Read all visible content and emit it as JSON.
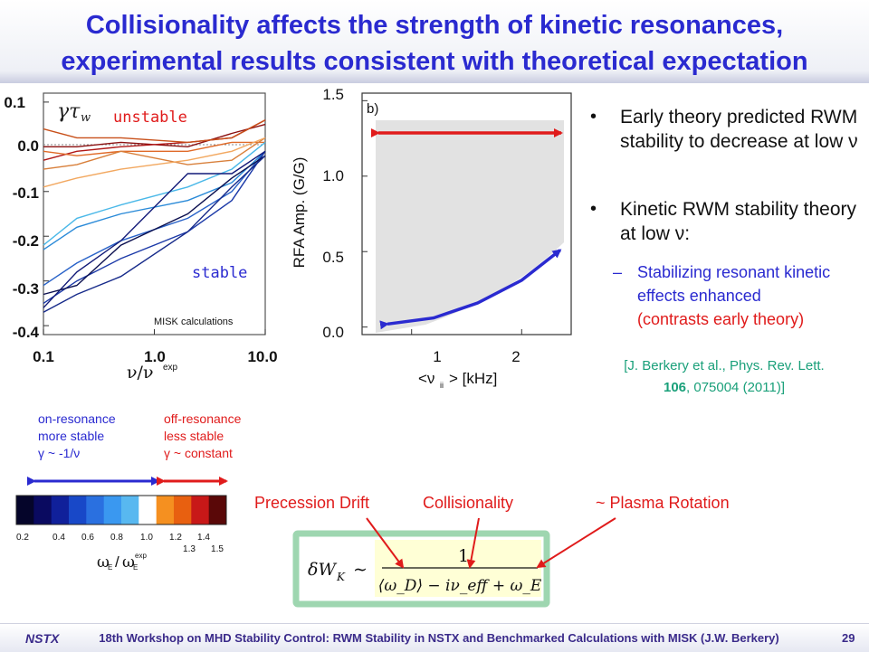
{
  "title": {
    "line1": "Collisionality affects the strength of kinetic resonances,",
    "line2": "experimental results consistent with theoretical expectation"
  },
  "left_chart": {
    "y_symbol": "γτ",
    "y_symbol_sub": "w",
    "ytick_labels": [
      "0.1",
      "0.0",
      "-0.1",
      "-0.2",
      "-0.3",
      "-0.4"
    ],
    "xtick_labels": [
      "0.1",
      "1.0",
      "10.0"
    ],
    "xlabel_main": "ν/ν",
    "xlabel_sup": "exp",
    "label_unstable": "unstable",
    "label_stable": "stable",
    "note": "MISK calculations"
  },
  "right_chart": {
    "panel_label": "b)",
    "ylabel": "RFA Amp. (G/G)",
    "ytick_labels": [
      "1.5",
      "1.0",
      "0.5",
      "0.0"
    ],
    "xtick_labels": [
      "1",
      "2"
    ],
    "xlabel_main": "<ν",
    "xlabel_sub": "ii",
    "xlabel_tail": "> [kHz]"
  },
  "chart_data": [
    {
      "type": "line",
      "title": "",
      "xlabel": "ν/ν^exp",
      "ylabel": "γτw",
      "xscale": "log",
      "xlim": [
        0.1,
        10.0
      ],
      "ylim": [
        -0.42,
        0.12
      ],
      "x": [
        0.1,
        0.2,
        0.5,
        2.0,
        5.0,
        10.0
      ],
      "series": [
        {
          "color": "#8b1010",
          "values": [
            0.0,
            0.0,
            0.01,
            0.0,
            0.03,
            0.05
          ]
        },
        {
          "color": "#b01818",
          "values": [
            -0.03,
            -0.01,
            0.0,
            0.01,
            0.02,
            0.06
          ]
        },
        {
          "color": "#c8501a",
          "values": [
            0.04,
            0.02,
            0.02,
            0.01,
            0.02,
            0.06
          ]
        },
        {
          "color": "#e06a28",
          "values": [
            -0.01,
            -0.02,
            -0.01,
            -0.01,
            0.01,
            0.01
          ]
        },
        {
          "color": "#d87f3a",
          "values": [
            -0.05,
            -0.04,
            -0.01,
            -0.04,
            -0.03,
            0.02
          ]
        },
        {
          "color": "#f2a860",
          "values": [
            -0.09,
            -0.07,
            -0.05,
            -0.03,
            -0.01,
            0.02
          ]
        },
        {
          "color": "#4ab8e8",
          "values": [
            -0.22,
            -0.16,
            -0.13,
            -0.09,
            -0.05,
            0.01
          ]
        },
        {
          "color": "#2a8ad8",
          "values": [
            -0.23,
            -0.18,
            -0.15,
            -0.12,
            -0.08,
            -0.01
          ]
        },
        {
          "color": "#2862c8",
          "values": [
            -0.31,
            -0.26,
            -0.21,
            -0.16,
            -0.1,
            -0.01
          ]
        },
        {
          "color": "#1c3aa8",
          "values": [
            -0.35,
            -0.3,
            -0.25,
            -0.19,
            -0.12,
            -0.01
          ]
        },
        {
          "color": "#121a78",
          "values": [
            -0.36,
            -0.28,
            -0.21,
            -0.06,
            -0.06,
            -0.01
          ]
        },
        {
          "color": "#0c1050",
          "values": [
            -0.33,
            -0.31,
            -0.22,
            -0.15,
            -0.07,
            -0.02
          ]
        },
        {
          "color": "#162a8a",
          "values": [
            -0.37,
            -0.33,
            -0.29,
            -0.19,
            -0.09,
            -0.02
          ]
        }
      ]
    },
    {
      "type": "line",
      "title": "b)",
      "xlabel": "<ν_ii> [kHz]",
      "ylabel": "RFA Amp. (G/G)",
      "xlim": [
        0.55,
        2.45
      ],
      "ylim": [
        -0.05,
        1.55
      ],
      "series": [
        {
          "name": "",
          "x": [
            0.78,
            1.2,
            1.6,
            2.0,
            2.35
          ],
          "values": [
            0.02,
            0.06,
            0.16,
            0.31,
            0.51
          ]
        }
      ]
    }
  ],
  "bullets": [
    "Early theory predicted RWM stability to decrease at low ν",
    "Kinetic RWM stability theory at low ν:"
  ],
  "sub_bullet": {
    "dash": "–",
    "blue": "Stabilizing resonant kinetic effects enhanced",
    "red": "(contrasts early theory)"
  },
  "reference": {
    "line1": "[J. Berkery et al., Phys. Rev. Lett.",
    "vol": "106",
    "line2": ", 075004 (2011)]"
  },
  "legend": {
    "on_res": [
      "on-resonance",
      "more stable",
      "γ ~ -1/ν"
    ],
    "off_res": [
      "off-resonance",
      "less stable",
      "γ ~ constant"
    ],
    "color_ticks": [
      "0.2",
      "0.4",
      "0.6",
      "0.8",
      "1.0",
      "1.2",
      "1.4"
    ],
    "color_ticks_lower": [
      "1.3",
      "1.5"
    ],
    "axis_label": "ω",
    "axis_sub": "E",
    "axis_sup": "exp",
    "colors": [
      "#05052a",
      "#0a0a60",
      "#10209a",
      "#1848c8",
      "#2a70e0",
      "#3a98f0",
      "#58b8f0",
      "#ffffff",
      "#f59020",
      "#e86010",
      "#c81818",
      "#5a0808"
    ]
  },
  "formula": {
    "labels": [
      "Precession Drift",
      "Collisionality",
      "~ Plasma Rotation"
    ],
    "lhs": "δW",
    "lhs_sub": "K",
    "sim": "∼",
    "numerator": "1",
    "denominator": "⟨ω_D⟩ − iν_eff + ω_E"
  },
  "footer": {
    "logo": "NSTX",
    "text": "18th Workshop on MHD Stability Control: RWM Stability in NSTX and Benchmarked Calculations with MISK (J.W. Berkery)",
    "page": "29"
  }
}
